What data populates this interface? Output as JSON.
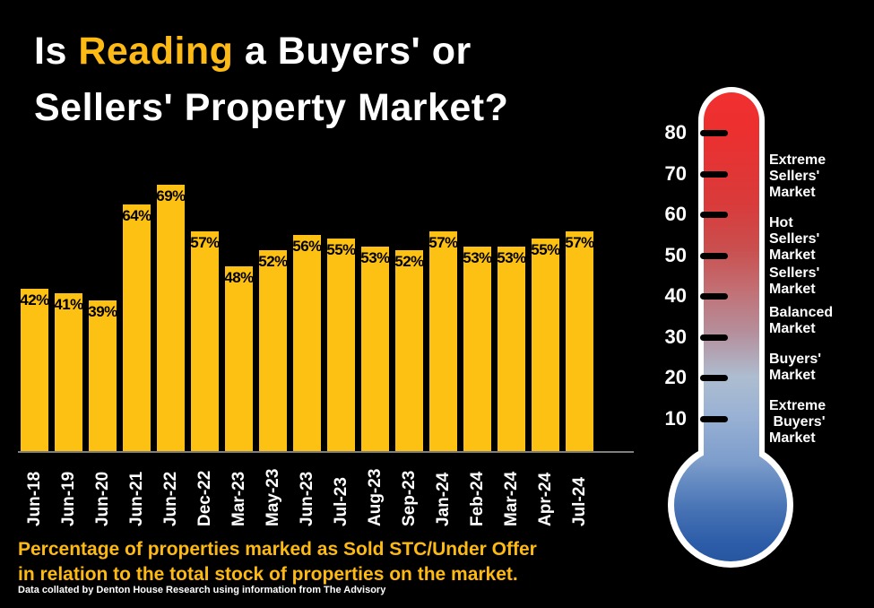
{
  "title": {
    "line1_prefix": "Is ",
    "line1_highlight": "Reading",
    "line1_suffix": " a Buyers' or",
    "line2": "Sellers' Property Market?"
  },
  "chart_data": {
    "type": "bar",
    "title": "Is Reading a Buyers' or Sellers' Property Market?",
    "categories": [
      "Jun-18",
      "Jun-19",
      "Jun-20",
      "Jun-21",
      "Jun-22",
      "Dec-22",
      "Mar-23",
      "May-23",
      "Jun-23",
      "Jul-23",
      "Aug-23",
      "Sep-23",
      "Jan-24",
      "Feb-24",
      "Mar-24",
      "Apr-24",
      "Jul-24"
    ],
    "values": [
      42,
      41,
      39,
      64,
      69,
      57,
      48,
      52,
      56,
      55,
      53,
      52,
      57,
      53,
      53,
      55,
      57
    ],
    "value_suffix": "%",
    "xlabel": "",
    "ylabel": "",
    "ylim": [
      0,
      80
    ],
    "grid": false,
    "legend": "none",
    "bar_color": "#FDC113",
    "value_label_color": "#000000",
    "axis_line_color": "#7F7F7F"
  },
  "caption": {
    "line1": "Percentage of properties marked as Sold STC/Under Offer",
    "line2": "in relation to the total stock of properties on the market.",
    "source": "Data collated by Denton House Research using information from The Advisory"
  },
  "thermometer": {
    "scale_ticks": [
      80,
      70,
      60,
      50,
      40,
      30,
      20,
      10
    ],
    "zones": [
      {
        "lines": [
          "Extreme",
          "Sellers'",
          "Market"
        ]
      },
      {
        "lines": [
          "Hot",
          "Sellers'",
          "Market"
        ]
      },
      {
        "lines": [
          "Sellers'",
          "Market"
        ]
      },
      {
        "lines": [
          "Balanced",
          "Market"
        ]
      },
      {
        "lines": [
          "Buyers'",
          "Market"
        ]
      },
      {
        "lines": [
          "Extreme",
          " Buyers'",
          "Market"
        ]
      }
    ],
    "colors": {
      "hot_red": "#F23030",
      "cold_blue": "#2857A0",
      "outline": "#FFFFFF",
      "tick": "#000000"
    }
  },
  "colors": {
    "background": "#000000",
    "accent_gold": "#FDB914",
    "text_white": "#FFFFFF"
  }
}
